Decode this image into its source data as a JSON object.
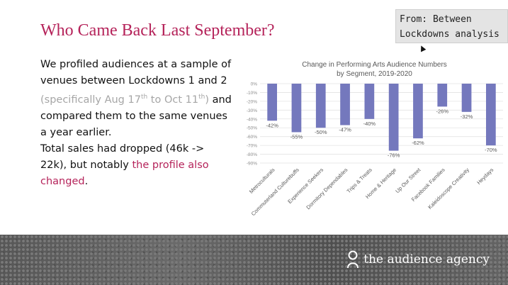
{
  "slide": {
    "title": "Who Came Back Last September?",
    "tooltip": {
      "line1": "From: Between",
      "line2": "Lockdowns analysis"
    },
    "body": {
      "p1_main": "We profiled audiences at a sample of venues between Lockdowns 1 and 2 ",
      "p1_aside_open": "(specifically Aug 17",
      "p1_aside_sup1": "th",
      "p1_aside_mid": " to Oct 11",
      "p1_aside_sup2": "th",
      "p1_aside_close": ")",
      "p1_end": " and compared them to the same venues a year earlier.",
      "p2_main": "Total sales had dropped (46k -> 22k), but notably ",
      "p2_accent": "the profile also changed",
      "p2_end": "."
    },
    "footer": {
      "brand_name": "the audience agency",
      "icon": "person-icon"
    }
  },
  "chart_data": {
    "type": "bar",
    "title": "Change in Performing Arts Audience Numbers",
    "subtitle": "by Segment, 2019-2020",
    "xlabel": "",
    "ylabel": "",
    "categories": [
      "Metroculturals",
      "Commuterland Culturebuffs",
      "Experience Seekers",
      "Dormitory Dependables",
      "Trips & Treats",
      "Home & Heritage",
      "Up Our Street",
      "Facebook Families",
      "Kaleidoscope Creativity",
      "Heydays"
    ],
    "values": [
      -42,
      -55,
      -50,
      -47,
      -40,
      -76,
      -62,
      -26,
      -32,
      -70
    ],
    "data_labels": [
      "-42%",
      "-55%",
      "-50%",
      "-47%",
      "-40%",
      "-76%",
      "-62%",
      "-26%",
      "-32%",
      "-70%"
    ],
    "ylim": [
      -90,
      0
    ],
    "yticks": [
      0,
      -10,
      -20,
      -30,
      -40,
      -50,
      -60,
      -70,
      -80,
      -90
    ],
    "ytick_labels": [
      "0%",
      "-10%",
      "-20%",
      "-30%",
      "-40%",
      "-50%",
      "-60%",
      "-70%",
      "-80%",
      "-90%"
    ],
    "grid": true,
    "legend": "none",
    "bar_color": "#7478bd"
  }
}
